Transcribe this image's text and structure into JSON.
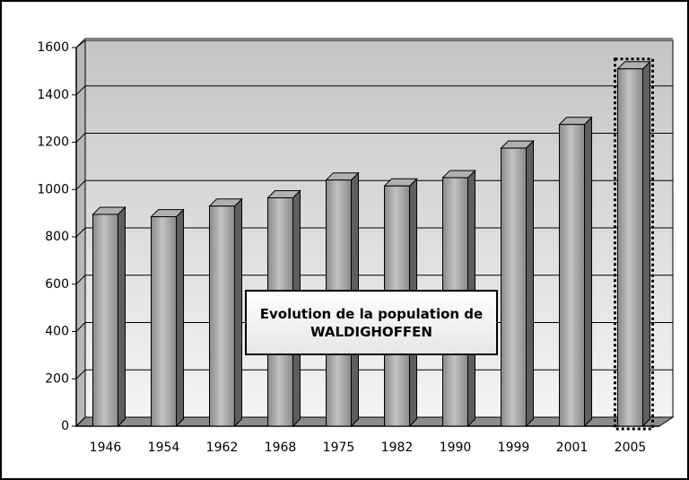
{
  "chart_data": {
    "type": "bar",
    "title": "Evolution de la population de WALDIGHOFFEN",
    "categories": [
      "1946",
      "1954",
      "1962",
      "1968",
      "1975",
      "1982",
      "1990",
      "1999",
      "2001",
      "2005"
    ],
    "values": [
      895,
      885,
      930,
      965,
      1040,
      1015,
      1050,
      1175,
      1275,
      1510
    ],
    "color": "#999999",
    "ylim": [
      0,
      1600
    ],
    "yticks": [
      0,
      200,
      400,
      600,
      800,
      1000,
      1200,
      1400,
      1600
    ],
    "grid": true
  }
}
